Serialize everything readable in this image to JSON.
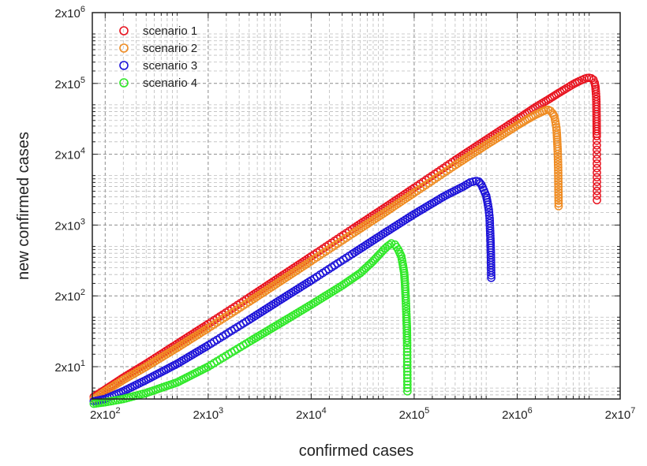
{
  "chart_data": {
    "type": "scatter",
    "title": "",
    "xlabel": "confirmed cases",
    "ylabel": "new confirmed cases",
    "xscale": "log",
    "yscale": "log",
    "xlim": [
      150,
      20000000
    ],
    "ylim": [
      7,
      2000000
    ],
    "grid": true,
    "legend_position": "top-left",
    "x_ticks": [
      {
        "value": 200,
        "mantissa": "2x10",
        "exp": "2"
      },
      {
        "value": 2000,
        "mantissa": "2x10",
        "exp": "3"
      },
      {
        "value": 20000,
        "mantissa": "2x10",
        "exp": "4"
      },
      {
        "value": 200000,
        "mantissa": "2x10",
        "exp": "5"
      },
      {
        "value": 2000000,
        "mantissa": "2x10",
        "exp": "6"
      },
      {
        "value": 20000000,
        "mantissa": "2x10",
        "exp": "7"
      }
    ],
    "y_ticks": [
      {
        "value": 20,
        "mantissa": "2x10",
        "exp": "1"
      },
      {
        "value": 200,
        "mantissa": "2x10",
        "exp": "2"
      },
      {
        "value": 2000,
        "mantissa": "2x10",
        "exp": "3"
      },
      {
        "value": 20000,
        "mantissa": "2x10",
        "exp": "4"
      },
      {
        "value": 200000,
        "mantissa": "2x10",
        "exp": "5"
      },
      {
        "value": 2000000,
        "mantissa": "2x10",
        "exp": "6"
      }
    ],
    "series": [
      {
        "name": "scenario 1",
        "color": "#e8131f",
        "points": [
          [
            155,
            7.5
          ],
          [
            200,
            9.5
          ],
          [
            300,
            14
          ],
          [
            500,
            22
          ],
          [
            1000,
            42
          ],
          [
            2000,
            80
          ],
          [
            5000,
            190
          ],
          [
            10000,
            370
          ],
          [
            20000,
            720
          ],
          [
            50000,
            1750
          ],
          [
            100000,
            3400
          ],
          [
            200000,
            6700
          ],
          [
            500000,
            16500
          ],
          [
            1000000,
            32000
          ],
          [
            2000000,
            62000
          ],
          [
            3000000,
            92000
          ],
          [
            4000000,
            118000
          ],
          [
            5000000,
            145000
          ],
          [
            6000000,
            170000
          ],
          [
            7000000,
            195000
          ],
          [
            8000000,
            215000
          ],
          [
            9000000,
            232000
          ],
          [
            9500000,
            238000
          ],
          [
            10000000,
            240000
          ],
          [
            10500000,
            236000
          ],
          [
            11000000,
            225000
          ],
          [
            11300000,
            205000
          ],
          [
            11500000,
            180000
          ],
          [
            11600000,
            155000
          ],
          [
            11700000,
            130000
          ],
          [
            11750000,
            110000
          ],
          [
            11800000,
            68000
          ],
          [
            11850000,
            36000
          ],
          [
            11900000,
            4500
          ]
        ]
      },
      {
        "name": "scenario 2",
        "color": "#ef8c23",
        "points": [
          [
            155,
            7
          ],
          [
            200,
            9
          ],
          [
            300,
            13
          ],
          [
            500,
            20
          ],
          [
            1000,
            37
          ],
          [
            2000,
            70
          ],
          [
            5000,
            165
          ],
          [
            10000,
            320
          ],
          [
            20000,
            620
          ],
          [
            50000,
            1500
          ],
          [
            100000,
            2900
          ],
          [
            200000,
            5700
          ],
          [
            500000,
            14000
          ],
          [
            1000000,
            27000
          ],
          [
            1500000,
            39000
          ],
          [
            2000000,
            51000
          ],
          [
            2500000,
            62000
          ],
          [
            3000000,
            72000
          ],
          [
            3500000,
            80000
          ],
          [
            3800000,
            84000
          ],
          [
            4000000,
            85000
          ],
          [
            4200000,
            82000
          ],
          [
            4400000,
            76000
          ],
          [
            4600000,
            68000
          ],
          [
            4700000,
            58000
          ],
          [
            4800000,
            48000
          ],
          [
            4850000,
            40000
          ],
          [
            4900000,
            30000
          ],
          [
            4950000,
            22000
          ],
          [
            5000000,
            13000
          ],
          [
            5050000,
            3700
          ]
        ]
      },
      {
        "name": "scenario 3",
        "color": "#1c12d8",
        "points": [
          [
            155,
            6.5
          ],
          [
            200,
            7
          ],
          [
            300,
            9
          ],
          [
            500,
            13
          ],
          [
            1000,
            22
          ],
          [
            2000,
            40
          ],
          [
            5000,
            92
          ],
          [
            10000,
            175
          ],
          [
            20000,
            330
          ],
          [
            50000,
            780
          ],
          [
            100000,
            1500
          ],
          [
            200000,
            2850
          ],
          [
            400000,
            5200
          ],
          [
            600000,
            7000
          ],
          [
            700000,
            8000
          ],
          [
            800000,
            8400
          ],
          [
            850000,
            8200
          ],
          [
            900000,
            7400
          ],
          [
            950000,
            6200
          ],
          [
            1000000,
            5200
          ],
          [
            1030000,
            4200
          ],
          [
            1060000,
            3300
          ],
          [
            1080000,
            2500
          ],
          [
            1090000,
            1800
          ],
          [
            1100000,
            1300
          ],
          [
            1110000,
            820
          ],
          [
            1120000,
            360
          ]
        ]
      },
      {
        "name": "scenario 4",
        "color": "#2ee827",
        "points": [
          [
            155,
            6
          ],
          [
            200,
            6.3
          ],
          [
            300,
            7
          ],
          [
            500,
            8.5
          ],
          [
            1000,
            12
          ],
          [
            2000,
            20
          ],
          [
            5000,
            45
          ],
          [
            10000,
            82
          ],
          [
            20000,
            150
          ],
          [
            40000,
            280
          ],
          [
            60000,
            420
          ],
          [
            80000,
            620
          ],
          [
            100000,
            880
          ],
          [
            110000,
            1000
          ],
          [
            120000,
            1100
          ],
          [
            130000,
            1060
          ],
          [
            140000,
            900
          ],
          [
            150000,
            720
          ],
          [
            155000,
            560
          ],
          [
            160000,
            420
          ],
          [
            163000,
            290
          ],
          [
            166000,
            170
          ],
          [
            168000,
            110
          ],
          [
            170000,
            70
          ],
          [
            171000,
            40
          ],
          [
            172000,
            9
          ]
        ]
      }
    ]
  }
}
